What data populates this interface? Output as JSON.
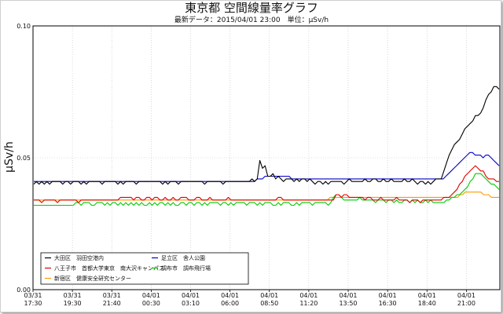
{
  "chart_data": {
    "type": "line",
    "title": "東京都 空間線量率グラフ",
    "subtitle": "最新データ：2015/04/01 23:00　単位：μSv/h",
    "ylabel": "μSv/h",
    "xlabel": "",
    "ylim": [
      0.0,
      0.1
    ],
    "yticks": [
      "0.00",
      "0.05",
      "0.10"
    ],
    "xtick_labels": [
      {
        "date": "03/31",
        "time": "17:30"
      },
      {
        "date": "03/31",
        "time": "19:30"
      },
      {
        "date": "03/31",
        "time": "21:40"
      },
      {
        "date": "04/01",
        "time": "00:30"
      },
      {
        "date": "04/01",
        "time": "03:10"
      },
      {
        "date": "04/01",
        "time": "06:00"
      },
      {
        "date": "04/01",
        "time": "08:50"
      },
      {
        "date": "04/01",
        "time": "11:20"
      },
      {
        "date": "04/01",
        "time": "13:50"
      },
      {
        "date": "04/01",
        "time": "16:30"
      },
      {
        "date": "04/01",
        "time": "18:40"
      },
      {
        "date": "04/01",
        "time": "21:00"
      }
    ],
    "grid": true,
    "legend_position": "bottom-left",
    "series": [
      {
        "name": "大田区　羽田空港内",
        "color": "#000000",
        "values": [
          0.04,
          0.041,
          0.04,
          0.041,
          0.04,
          0.041,
          0.04,
          0.041,
          0.041,
          0.041,
          0.041,
          0.04,
          0.041,
          0.041,
          0.04,
          0.041,
          0.041,
          0.041,
          0.04,
          0.041,
          0.04,
          0.041,
          0.041,
          0.041,
          0.041,
          0.041,
          0.04,
          0.041,
          0.041,
          0.041,
          0.041,
          0.041,
          0.04,
          0.041,
          0.04,
          0.041,
          0.041,
          0.041,
          0.041,
          0.04,
          0.041,
          0.041,
          0.041,
          0.041,
          0.041,
          0.041,
          0.041,
          0.041,
          0.041,
          0.04,
          0.041,
          0.04,
          0.041,
          0.041,
          0.041,
          0.04,
          0.041,
          0.041,
          0.041,
          0.041,
          0.041,
          0.041,
          0.041,
          0.041,
          0.041,
          0.04,
          0.041,
          0.041,
          0.041,
          0.041,
          0.041,
          0.041,
          0.04,
          0.041,
          0.041,
          0.041,
          0.041,
          0.041,
          0.041,
          0.041,
          0.041,
          0.041,
          0.041,
          0.042,
          0.041,
          0.042,
          0.049,
          0.046,
          0.047,
          0.043,
          0.043,
          0.044,
          0.042,
          0.043,
          0.042,
          0.041,
          0.042,
          0.042,
          0.042,
          0.041,
          0.042,
          0.041,
          0.042,
          0.042,
          0.041,
          0.042,
          0.041,
          0.04,
          0.041,
          0.041,
          0.04,
          0.041,
          0.04,
          0.041,
          0.041,
          0.041,
          0.041,
          0.041,
          0.04,
          0.041,
          0.042,
          0.041,
          0.041,
          0.041,
          0.041,
          0.041,
          0.042,
          0.041,
          0.041,
          0.042,
          0.042,
          0.041,
          0.041,
          0.042,
          0.041,
          0.041,
          0.042,
          0.041,
          0.041,
          0.041,
          0.041,
          0.042,
          0.041,
          0.041,
          0.042,
          0.041,
          0.04,
          0.041,
          0.041,
          0.04,
          0.041,
          0.04,
          0.041,
          0.042,
          0.042,
          0.042,
          0.045,
          0.048,
          0.051,
          0.053,
          0.055,
          0.056,
          0.057,
          0.059,
          0.061,
          0.062,
          0.063,
          0.064,
          0.066,
          0.066,
          0.067,
          0.069,
          0.072,
          0.074,
          0.075,
          0.077,
          0.077,
          0.076
        ]
      },
      {
        "name": "足立区　舎人公園",
        "color": "#0000cc",
        "values": [
          0.041,
          0.041,
          0.041,
          0.041,
          0.041,
          0.041,
          0.041,
          0.041,
          0.041,
          0.041,
          0.041,
          0.041,
          0.041,
          0.041,
          0.041,
          0.041,
          0.041,
          0.041,
          0.041,
          0.041,
          0.041,
          0.041,
          0.041,
          0.041,
          0.041,
          0.041,
          0.041,
          0.041,
          0.041,
          0.041,
          0.041,
          0.041,
          0.041,
          0.041,
          0.041,
          0.041,
          0.041,
          0.041,
          0.041,
          0.041,
          0.041,
          0.041,
          0.041,
          0.041,
          0.041,
          0.041,
          0.041,
          0.041,
          0.041,
          0.041,
          0.041,
          0.041,
          0.041,
          0.041,
          0.041,
          0.041,
          0.041,
          0.041,
          0.041,
          0.041,
          0.041,
          0.041,
          0.041,
          0.041,
          0.041,
          0.041,
          0.041,
          0.041,
          0.041,
          0.041,
          0.041,
          0.041,
          0.041,
          0.041,
          0.041,
          0.041,
          0.041,
          0.041,
          0.041,
          0.041,
          0.041,
          0.041,
          0.041,
          0.041,
          0.042,
          0.042,
          0.042,
          0.043,
          0.043,
          0.043,
          0.043,
          0.043,
          0.043,
          0.043,
          0.043,
          0.043,
          0.043,
          0.042,
          0.042,
          0.042,
          0.042,
          0.042,
          0.042,
          0.042,
          0.042,
          0.042,
          0.042,
          0.042,
          0.042,
          0.042,
          0.042,
          0.042,
          0.042,
          0.042,
          0.042,
          0.042,
          0.042,
          0.042,
          0.042,
          0.042,
          0.042,
          0.042,
          0.042,
          0.042,
          0.042,
          0.042,
          0.042,
          0.042,
          0.042,
          0.042,
          0.042,
          0.042,
          0.042,
          0.042,
          0.042,
          0.042,
          0.042,
          0.042,
          0.042,
          0.042,
          0.042,
          0.042,
          0.042,
          0.042,
          0.042,
          0.042,
          0.042,
          0.042,
          0.042,
          0.042,
          0.042,
          0.042,
          0.042,
          0.042,
          0.042,
          0.043,
          0.044,
          0.045,
          0.046,
          0.047,
          0.048,
          0.049,
          0.05,
          0.051,
          0.052,
          0.052,
          0.051,
          0.051,
          0.051,
          0.05,
          0.051,
          0.051,
          0.05,
          0.049,
          0.048,
          0.047
        ]
      },
      {
        "name": "八王子市　首都大学東京　南大沢キャンパス",
        "color": "#dd0000",
        "values": [
          0.034,
          0.034,
          0.034,
          0.033,
          0.034,
          0.034,
          0.034,
          0.034,
          0.034,
          0.033,
          0.034,
          0.034,
          0.034,
          0.034,
          0.034,
          0.034,
          0.034,
          0.033,
          0.034,
          0.034,
          0.034,
          0.034,
          0.034,
          0.034,
          0.034,
          0.034,
          0.034,
          0.034,
          0.034,
          0.034,
          0.034,
          0.034,
          0.034,
          0.035,
          0.035,
          0.035,
          0.035,
          0.035,
          0.034,
          0.035,
          0.035,
          0.034,
          0.034,
          0.035,
          0.035,
          0.034,
          0.035,
          0.035,
          0.034,
          0.034,
          0.035,
          0.034,
          0.034,
          0.035,
          0.034,
          0.034,
          0.035,
          0.035,
          0.035,
          0.034,
          0.034,
          0.034,
          0.035,
          0.035,
          0.034,
          0.034,
          0.034,
          0.035,
          0.034,
          0.034,
          0.034,
          0.034,
          0.034,
          0.034,
          0.035,
          0.034,
          0.034,
          0.034,
          0.034,
          0.034,
          0.034,
          0.034,
          0.034,
          0.034,
          0.034,
          0.034,
          0.034,
          0.034,
          0.034,
          0.034,
          0.034,
          0.034,
          0.034,
          0.035,
          0.035,
          0.034,
          0.034,
          0.034,
          0.034,
          0.034,
          0.034,
          0.034,
          0.034,
          0.034,
          0.034,
          0.034,
          0.034,
          0.034,
          0.034,
          0.034,
          0.034,
          0.034,
          0.034,
          0.034,
          0.034,
          0.036,
          0.036,
          0.035,
          0.036,
          0.036,
          0.035,
          0.035,
          0.035,
          0.035,
          0.035,
          0.035,
          0.034,
          0.035,
          0.035,
          0.034,
          0.034,
          0.034,
          0.035,
          0.034,
          0.034,
          0.034,
          0.034,
          0.034,
          0.035,
          0.034,
          0.034,
          0.034,
          0.034,
          0.033,
          0.034,
          0.034,
          0.034,
          0.033,
          0.034,
          0.034,
          0.034,
          0.034,
          0.034,
          0.034,
          0.034,
          0.034,
          0.035,
          0.035,
          0.035,
          0.036,
          0.037,
          0.038,
          0.04,
          0.041,
          0.043,
          0.044,
          0.045,
          0.046,
          0.047,
          0.046,
          0.045,
          0.045,
          0.043,
          0.042,
          0.042,
          0.042,
          0.041,
          0.041
        ]
      },
      {
        "name": "調布市　調布飛行場",
        "color": "#00cc00",
        "values": [
          0.032,
          0.032,
          0.032,
          0.032,
          0.032,
          0.032,
          0.032,
          0.032,
          0.032,
          0.032,
          0.032,
          0.032,
          0.032,
          0.032,
          0.032,
          0.032,
          0.033,
          0.033,
          0.032,
          0.033,
          0.033,
          0.033,
          0.032,
          0.032,
          0.033,
          0.033,
          0.033,
          0.032,
          0.033,
          0.032,
          0.033,
          0.033,
          0.032,
          0.033,
          0.032,
          0.033,
          0.032,
          0.033,
          0.032,
          0.033,
          0.032,
          0.033,
          0.032,
          0.032,
          0.033,
          0.032,
          0.033,
          0.032,
          0.033,
          0.033,
          0.032,
          0.033,
          0.032,
          0.033,
          0.032,
          0.032,
          0.033,
          0.033,
          0.032,
          0.033,
          0.033,
          0.032,
          0.033,
          0.033,
          0.032,
          0.033,
          0.032,
          0.033,
          0.033,
          0.033,
          0.033,
          0.032,
          0.033,
          0.033,
          0.032,
          0.033,
          0.032,
          0.033,
          0.033,
          0.033,
          0.033,
          0.032,
          0.033,
          0.033,
          0.033,
          0.032,
          0.033,
          0.032,
          0.033,
          0.033,
          0.033,
          0.032,
          0.032,
          0.033,
          0.032,
          0.033,
          0.033,
          0.033,
          0.032,
          0.032,
          0.033,
          0.032,
          0.033,
          0.033,
          0.033,
          0.033,
          0.032,
          0.033,
          0.033,
          0.033,
          0.033,
          0.033,
          0.032,
          0.033,
          0.035,
          0.036,
          0.036,
          0.035,
          0.034,
          0.034,
          0.034,
          0.034,
          0.034,
          0.034,
          0.035,
          0.034,
          0.034,
          0.034,
          0.034,
          0.034,
          0.033,
          0.034,
          0.034,
          0.034,
          0.033,
          0.034,
          0.034,
          0.033,
          0.034,
          0.033,
          0.033,
          0.034,
          0.034,
          0.033,
          0.034,
          0.033,
          0.034,
          0.033,
          0.033,
          0.034,
          0.033,
          0.034,
          0.033,
          0.033,
          0.033,
          0.033,
          0.033,
          0.034,
          0.034,
          0.035,
          0.035,
          0.036,
          0.036,
          0.037,
          0.038,
          0.039,
          0.041,
          0.042,
          0.044,
          0.044,
          0.044,
          0.043,
          0.042,
          0.041,
          0.04,
          0.04,
          0.039,
          0.038
        ]
      },
      {
        "name": "新宿区　健康安全研究センター",
        "color": "#ff9900",
        "values": [
          0.034,
          0.034,
          0.034,
          0.034,
          0.034,
          0.034,
          0.034,
          0.034,
          0.034,
          0.034,
          0.034,
          0.034,
          0.034,
          0.034,
          0.034,
          0.034,
          0.034,
          0.034,
          0.034,
          0.034,
          0.034,
          0.034,
          0.034,
          0.034,
          0.034,
          0.034,
          0.034,
          0.034,
          0.034,
          0.034,
          0.034,
          0.034,
          0.034,
          0.034,
          0.034,
          0.034,
          0.034,
          0.034,
          0.034,
          0.034,
          0.034,
          0.034,
          0.034,
          0.034,
          0.034,
          0.034,
          0.034,
          0.034,
          0.034,
          0.034,
          0.034,
          0.034,
          0.034,
          0.034,
          0.034,
          0.034,
          0.034,
          0.034,
          0.034,
          0.034,
          0.034,
          0.034,
          0.034,
          0.034,
          0.034,
          0.034,
          0.034,
          0.034,
          0.034,
          0.034,
          0.034,
          0.034,
          0.034,
          0.034,
          0.034,
          0.034,
          0.034,
          0.034,
          0.034,
          0.034,
          0.034,
          0.034,
          0.034,
          0.034,
          0.034,
          0.034,
          0.034,
          0.034,
          0.034,
          0.034,
          0.034,
          0.034,
          0.034,
          0.034,
          0.034,
          0.034,
          0.034,
          0.034,
          0.034,
          0.034,
          0.034,
          0.034,
          0.034,
          0.034,
          0.034,
          0.034,
          0.034,
          0.034,
          0.034,
          0.034,
          0.034,
          0.034,
          0.034,
          0.034,
          0.035,
          0.035,
          0.035,
          0.035,
          0.035,
          0.035,
          0.035,
          0.035,
          0.035,
          0.035,
          0.035,
          0.035,
          0.035,
          0.035,
          0.035,
          0.035,
          0.035,
          0.035,
          0.035,
          0.035,
          0.035,
          0.035,
          0.035,
          0.035,
          0.035,
          0.035,
          0.035,
          0.035,
          0.035,
          0.035,
          0.035,
          0.035,
          0.035,
          0.035,
          0.035,
          0.035,
          0.035,
          0.035,
          0.035,
          0.035,
          0.035,
          0.035,
          0.035,
          0.035,
          0.035,
          0.035,
          0.035,
          0.035,
          0.035,
          0.035,
          0.036,
          0.036,
          0.037,
          0.037,
          0.037,
          0.037,
          0.037,
          0.037,
          0.037,
          0.036,
          0.036,
          0.036,
          0.035,
          0.035,
          0.035,
          0.035
        ]
      }
    ],
    "legend": [
      {
        "label": "大田区　羽田空港内",
        "color": "#000000"
      },
      {
        "label": "足立区　舎人公園",
        "color": "#0000cc"
      },
      {
        "label": "八王子市　首都大学東京　南大沢キャンパス",
        "color": "#dd0000"
      },
      {
        "label": "調布市　調布飛行場",
        "color": "#00cc00"
      },
      {
        "label": "新宿区　健康安全研究センター",
        "color": "#ff9900"
      }
    ]
  }
}
